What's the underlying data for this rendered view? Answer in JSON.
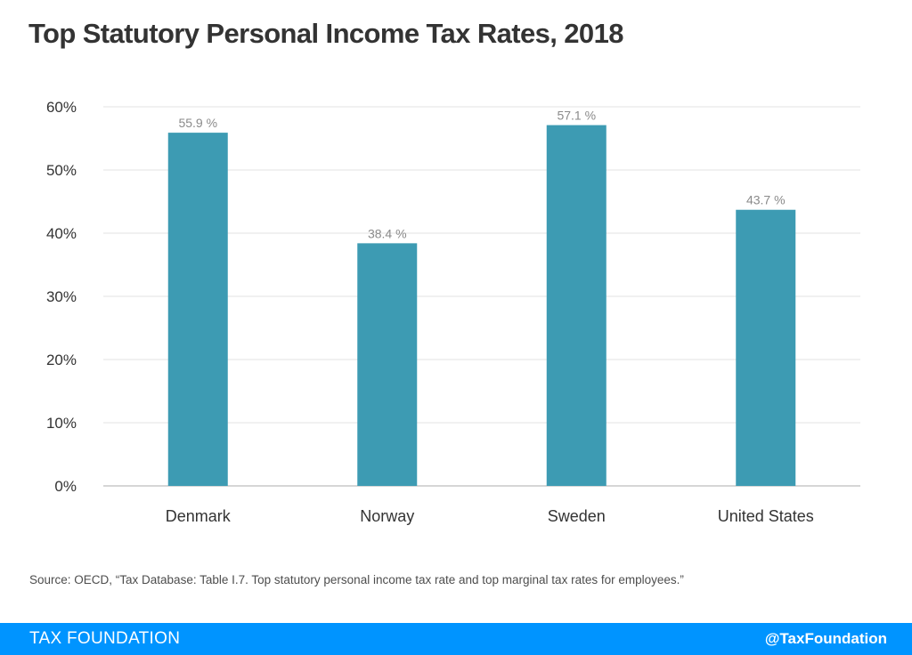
{
  "chart_data": {
    "type": "bar",
    "title": "Top Statutory Personal Income Tax Rates, 2018",
    "categories": [
      "Denmark",
      "Norway",
      "Sweden",
      "United States"
    ],
    "values": [
      55.9,
      38.4,
      57.1,
      43.7
    ],
    "data_labels": [
      "55.9 %",
      "38.4 %",
      "57.1 %",
      "43.7 %"
    ],
    "ylim": [
      0,
      60
    ],
    "yticks": [
      0,
      10,
      20,
      30,
      40,
      50,
      60
    ],
    "ytick_labels": [
      "0%",
      "10%",
      "20%",
      "30%",
      "40%",
      "50%",
      "60%"
    ],
    "xlabel": "",
    "ylabel": "",
    "grid": true,
    "legend": "none",
    "bar_color": "#3d9bb3"
  },
  "source": "Source: OECD, “Tax Database: Table I.7. Top statutory personal income tax rate and top marginal tax rates for employees.”",
  "footer": {
    "brand": "TAX FOUNDATION",
    "handle": "@TaxFoundation",
    "color": "#0094ff"
  }
}
